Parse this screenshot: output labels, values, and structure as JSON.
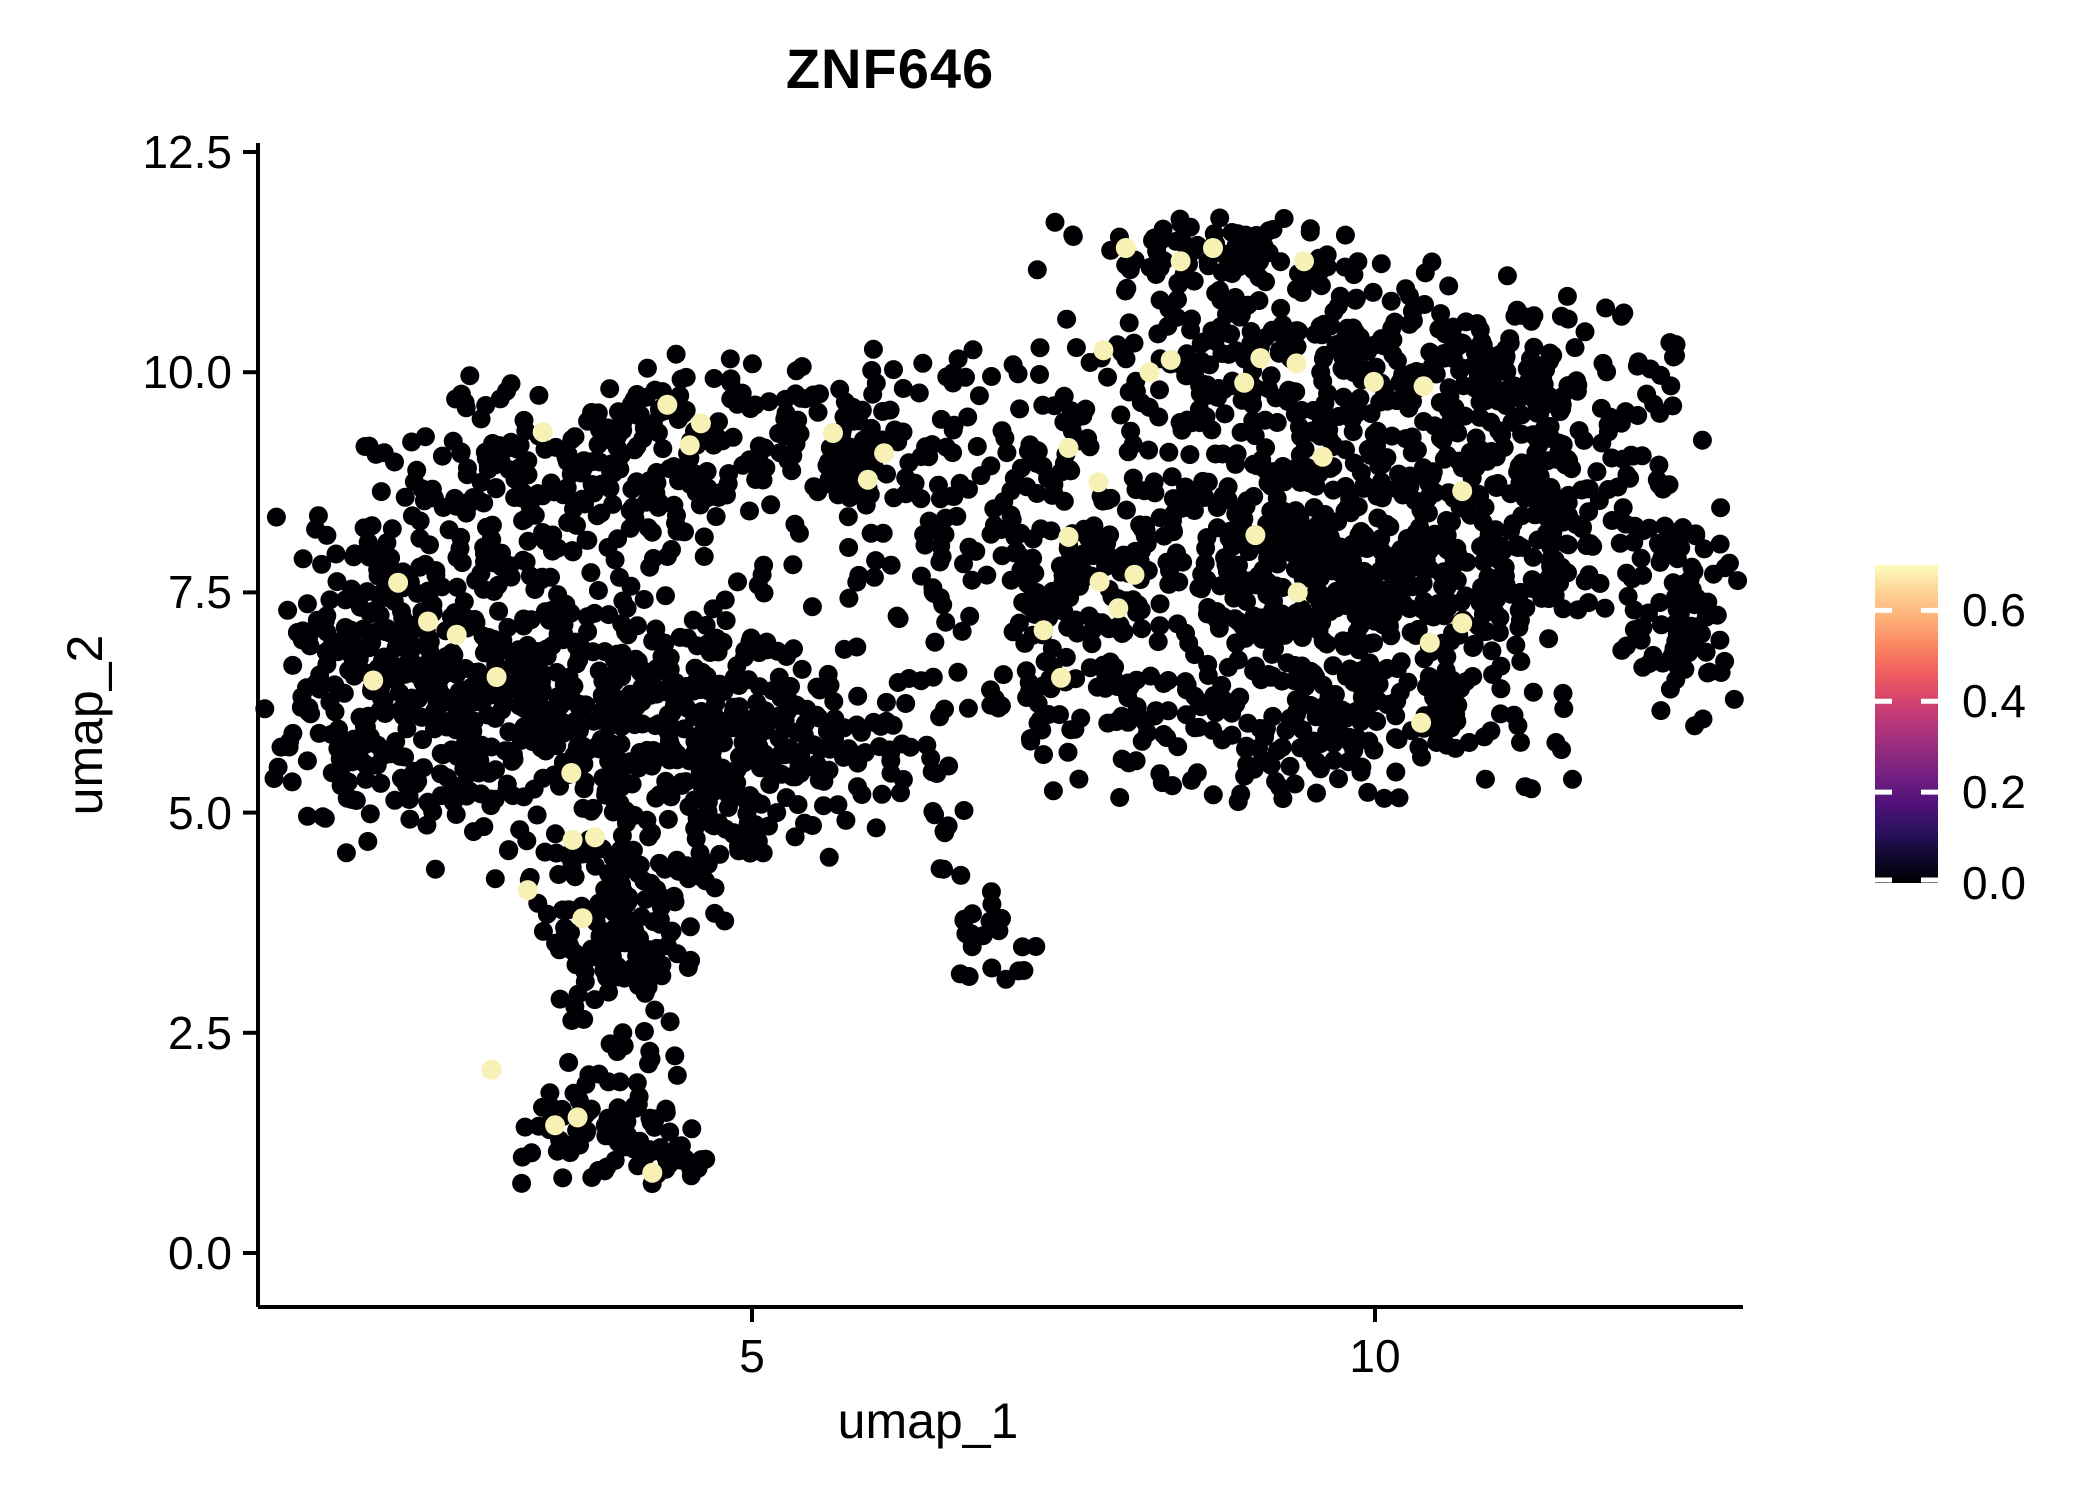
{
  "title": "ZNF646",
  "axes": {
    "x": {
      "label": "umap_1",
      "tick_values": [
        5,
        10
      ],
      "tick_labels": [
        "5",
        "10"
      ],
      "range": [
        1.03,
        12.97
      ]
    },
    "y": {
      "label": "umap_2",
      "tick_values": [
        0.0,
        2.5,
        5.0,
        7.5,
        10.0,
        12.5
      ],
      "tick_labels": [
        "0.0",
        "2.5",
        "5.0",
        "7.5",
        "10.0",
        "12.5"
      ],
      "range": [
        -0.62,
        12.6
      ]
    }
  },
  "legend": {
    "tick_values": [
      0.6,
      0.4,
      0.2,
      0.0
    ],
    "tick_labels": [
      "0.6",
      "0.4",
      "0.2",
      "0.0"
    ],
    "min": 0.0,
    "max": 0.7
  },
  "colors": {
    "background": "#ffffff",
    "axis": "#000000",
    "text": "#000000",
    "point_low": "#000004",
    "point_high": "#F7F1B5",
    "colorbar_tick": "#ffffff",
    "magma_scale": [
      "#000004",
      "#10092D",
      "#2D1160",
      "#51127C",
      "#721F81",
      "#932B80",
      "#B63679",
      "#D8456C",
      "#F1605D",
      "#FB8861",
      "#FEB078",
      "#FED395",
      "#FCFDBF"
    ]
  },
  "chart_data": {
    "type": "scatter",
    "title": "ZNF646",
    "xlabel": "umap_1",
    "ylabel": "umap_2",
    "xlim": [
      1.03,
      12.97
    ],
    "ylim": [
      -0.62,
      12.6
    ],
    "grid": false,
    "legend_position": "right",
    "color_scale": {
      "name": "magma",
      "domain": [
        0.0,
        0.7
      ]
    },
    "point_radius_px": 9.5,
    "base_expression_value": 0.0,
    "clusters": [
      {
        "name": "left-core-west",
        "cx": 2.6,
        "cy": 6.3,
        "sdx": 0.78,
        "sdy": 0.8,
        "n": 360,
        "clip": [
          1.06,
          5.6,
          4.0,
          9.2
        ]
      },
      {
        "name": "left-core-east",
        "cx": 4.2,
        "cy": 6.1,
        "sdx": 0.75,
        "sdy": 0.85,
        "n": 320,
        "clip": [
          1.3,
          6.2,
          4.0,
          9.3
        ]
      },
      {
        "name": "left-upper-arm",
        "cx": 3.5,
        "cy": 8.75,
        "sdx": 0.8,
        "sdy": 0.55,
        "n": 200,
        "clip": [
          1.8,
          5.6,
          7.6,
          10.4
        ]
      },
      {
        "name": "left-west-edge",
        "cx": 2.0,
        "cy": 7.0,
        "sdx": 0.5,
        "sdy": 0.7,
        "n": 100,
        "clip": [
          1.06,
          3.2,
          5.2,
          8.6
        ]
      },
      {
        "name": "left-southeast",
        "cx": 5.0,
        "cy": 5.5,
        "sdx": 0.55,
        "sdy": 0.6,
        "n": 120,
        "clip": [
          3.8,
          6.3,
          4.2,
          7.0
        ]
      },
      {
        "name": "left-tail",
        "cx": 3.95,
        "cy": 3.6,
        "sdx": 0.3,
        "sdy": 0.8,
        "n": 150,
        "clip": [
          3.2,
          4.8,
          2.0,
          5.0
        ]
      },
      {
        "name": "tail-foot",
        "cx": 3.8,
        "cy": 1.45,
        "sdx": 0.33,
        "sdy": 0.3,
        "n": 80,
        "clip": [
          3.1,
          4.6,
          0.75,
          2.2
        ]
      },
      {
        "name": "tail-foot-east",
        "cx": 4.35,
        "cy": 1.1,
        "sdx": 0.18,
        "sdy": 0.18,
        "n": 22,
        "clip": [
          3.9,
          4.8,
          0.7,
          1.6
        ]
      },
      {
        "name": "left-top-east",
        "cx": 4.7,
        "cy": 9.3,
        "sdx": 0.6,
        "sdy": 0.45,
        "n": 90,
        "clip": [
          3.6,
          5.9,
          8.3,
          10.4
        ]
      },
      {
        "name": "top-mid-sparse",
        "cx": 5.7,
        "cy": 9.15,
        "sdx": 0.45,
        "sdy": 0.45,
        "n": 50,
        "clip": [
          4.9,
          6.6,
          8.2,
          10.3
        ]
      },
      {
        "name": "bridge-upper",
        "cx": 6.6,
        "cy": 8.8,
        "sdx": 0.7,
        "sdy": 0.9,
        "n": 130,
        "clip": [
          5.7,
          7.6,
          6.9,
          10.5
        ]
      },
      {
        "name": "bridge-lower",
        "cx": 6.2,
        "cy": 5.8,
        "sdx": 0.5,
        "sdy": 0.5,
        "n": 40,
        "clip": [
          5.3,
          7.1,
          4.9,
          6.6
        ]
      },
      {
        "name": "mini-cluster",
        "cx": 6.88,
        "cy": 3.62,
        "sdx": 0.14,
        "sdy": 0.3,
        "n": 26,
        "clip": [
          6.5,
          7.3,
          2.9,
          4.3
        ]
      },
      {
        "name": "mini-trail",
        "cx": 6.62,
        "cy": 4.6,
        "sdx": 0.12,
        "sdy": 0.35,
        "n": 7,
        "clip": [
          6.3,
          7.0,
          4.0,
          5.2
        ]
      },
      {
        "name": "right-core",
        "cx": 9.4,
        "cy": 8.2,
        "sdx": 1.05,
        "sdy": 1.05,
        "n": 600,
        "clip": [
          7.0,
          12.4,
          5.1,
          11.2
        ]
      },
      {
        "name": "right-top-ridge",
        "cx": 8.7,
        "cy": 11.35,
        "sdx": 0.55,
        "sdy": 0.22,
        "n": 80,
        "clip": [
          7.4,
          10.2,
          10.8,
          11.85
        ]
      },
      {
        "name": "right-upper-band",
        "cx": 9.4,
        "cy": 10.3,
        "sdx": 1.0,
        "sdy": 0.5,
        "n": 170,
        "clip": [
          7.2,
          11.6,
          9.3,
          11.3
        ]
      },
      {
        "name": "right-arm",
        "cx": 11.4,
        "cy": 8.8,
        "sdx": 0.65,
        "sdy": 0.85,
        "n": 180,
        "clip": [
          10.2,
          12.92,
          6.6,
          10.6
        ]
      },
      {
        "name": "far-right-lobe",
        "cx": 12.4,
        "cy": 7.3,
        "sdx": 0.3,
        "sdy": 0.65,
        "n": 80,
        "clip": [
          11.7,
          12.92,
          5.9,
          8.8
        ]
      },
      {
        "name": "right-bottom-band",
        "cx": 9.3,
        "cy": 6.0,
        "sdx": 1.1,
        "sdy": 0.45,
        "n": 170,
        "clip": [
          7.2,
          11.8,
          5.1,
          7.0
        ]
      },
      {
        "name": "right-west-edge",
        "cx": 7.5,
        "cy": 7.2,
        "sdx": 0.45,
        "sdy": 0.9,
        "n": 100,
        "clip": [
          6.9,
          8.6,
          5.3,
          9.4
        ]
      },
      {
        "name": "right-mid-south",
        "cx": 10.1,
        "cy": 7.2,
        "sdx": 0.6,
        "sdy": 0.7,
        "n": 140,
        "clip": [
          8.8,
          11.6,
          5.3,
          9.0
        ]
      },
      {
        "name": "right-top-east",
        "cx": 11.2,
        "cy": 10.1,
        "sdx": 0.6,
        "sdy": 0.5,
        "n": 70,
        "clip": [
          10.0,
          12.5,
          9.0,
          11.2
        ]
      }
    ],
    "highlight_points": [
      [
        3.32,
        9.32,
        0.62
      ],
      [
        4.32,
        9.63,
        0.65
      ],
      [
        4.59,
        9.42,
        0.6
      ],
      [
        4.5,
        9.17,
        0.68
      ],
      [
        2.63,
        7.02,
        0.6
      ],
      [
        2.95,
        6.54,
        0.63
      ],
      [
        2.4,
        7.17,
        0.58
      ],
      [
        2.16,
        7.61,
        0.6
      ],
      [
        3.55,
        5.45,
        0.66
      ],
      [
        3.56,
        4.69,
        0.6
      ],
      [
        3.74,
        4.72,
        0.62
      ],
      [
        3.2,
        4.12,
        0.64
      ],
      [
        3.64,
        3.8,
        0.6
      ],
      [
        2.91,
        2.08,
        0.63
      ],
      [
        3.42,
        1.45,
        0.6
      ],
      [
        3.6,
        1.54,
        0.65
      ],
      [
        4.2,
        0.91,
        0.68
      ],
      [
        5.65,
        9.31,
        0.6
      ],
      [
        6.06,
        9.08,
        0.64
      ],
      [
        5.93,
        8.78,
        0.6
      ],
      [
        8.0,
        11.41,
        0.65
      ],
      [
        8.44,
        11.26,
        0.62
      ],
      [
        8.7,
        11.41,
        0.6
      ],
      [
        9.43,
        11.26,
        0.63
      ],
      [
        7.82,
        10.25,
        0.6
      ],
      [
        8.36,
        10.14,
        0.66
      ],
      [
        9.08,
        10.16,
        0.6
      ],
      [
        9.37,
        10.1,
        0.62
      ],
      [
        8.19,
        10.0,
        0.6
      ],
      [
        8.95,
        9.88,
        0.64
      ],
      [
        9.99,
        9.89,
        0.6
      ],
      [
        10.39,
        9.84,
        0.62
      ],
      [
        7.54,
        9.14,
        0.6
      ],
      [
        9.58,
        9.04,
        0.66
      ],
      [
        10.7,
        8.65,
        0.6
      ],
      [
        7.78,
        8.75,
        0.58
      ],
      [
        7.54,
        8.13,
        0.62
      ],
      [
        9.04,
        8.15,
        0.6
      ],
      [
        7.79,
        7.62,
        0.64
      ],
      [
        8.07,
        7.7,
        0.6
      ],
      [
        9.38,
        7.5,
        0.62
      ],
      [
        7.94,
        7.32,
        0.6
      ],
      [
        7.34,
        7.07,
        0.6
      ],
      [
        7.48,
        6.53,
        0.63
      ],
      [
        10.44,
        6.93,
        0.6
      ],
      [
        10.37,
        6.02,
        0.65
      ],
      [
        1.96,
        6.5,
        0.6
      ],
      [
        10.7,
        7.15,
        0.58
      ]
    ]
  }
}
